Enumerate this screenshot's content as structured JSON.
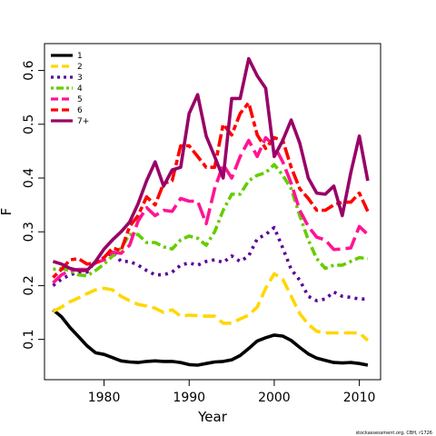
{
  "chart_data": {
    "type": "line",
    "xlabel": "Year",
    "ylabel": "F",
    "xlim": [
      1973,
      2012.5
    ],
    "ylim": [
      0.025,
      0.65
    ],
    "xticks": [
      1980,
      1990,
      2000,
      2010
    ],
    "yticks": [
      0.1,
      0.2,
      0.3,
      0.4,
      0.5,
      0.6
    ],
    "grid": false,
    "legend_position": "top-left",
    "credit": "stockassessment.org, CBH, r1726",
    "x": [
      1974,
      1975,
      1976,
      1977,
      1978,
      1979,
      1980,
      1981,
      1982,
      1983,
      1984,
      1985,
      1986,
      1987,
      1988,
      1989,
      1990,
      1991,
      1992,
      1993,
      1994,
      1995,
      1996,
      1997,
      1998,
      1999,
      2000,
      2001,
      2002,
      2003,
      2004,
      2005,
      2006,
      2007,
      2008,
      2009,
      2010,
      2011
    ],
    "series": [
      {
        "name": "1",
        "color": "#000000",
        "dash": "solid",
        "values": [
          0.155,
          0.142,
          0.122,
          0.105,
          0.088,
          0.075,
          0.072,
          0.066,
          0.06,
          0.058,
          0.057,
          0.059,
          0.06,
          0.059,
          0.059,
          0.057,
          0.053,
          0.052,
          0.055,
          0.058,
          0.059,
          0.062,
          0.07,
          0.083,
          0.097,
          0.103,
          0.108,
          0.106,
          0.098,
          0.085,
          0.073,
          0.065,
          0.061,
          0.057,
          0.056,
          0.057,
          0.055,
          0.052
        ]
      },
      {
        "name": "2",
        "color": "#FFD700",
        "dash": "dashed",
        "values": [
          0.152,
          0.16,
          0.17,
          0.177,
          0.185,
          0.192,
          0.195,
          0.192,
          0.18,
          0.172,
          0.165,
          0.162,
          0.158,
          0.15,
          0.155,
          0.143,
          0.145,
          0.144,
          0.143,
          0.143,
          0.13,
          0.13,
          0.138,
          0.145,
          0.16,
          0.195,
          0.222,
          0.212,
          0.18,
          0.148,
          0.128,
          0.115,
          0.112,
          0.112,
          0.112,
          0.112,
          0.112,
          0.098
        ]
      },
      {
        "name": "3",
        "color": "#5B0096",
        "dash": "dotted",
        "values": [
          0.2,
          0.212,
          0.22,
          0.225,
          0.225,
          0.245,
          0.252,
          0.262,
          0.245,
          0.245,
          0.238,
          0.228,
          0.22,
          0.22,
          0.225,
          0.238,
          0.242,
          0.238,
          0.245,
          0.248,
          0.243,
          0.255,
          0.245,
          0.255,
          0.287,
          0.295,
          0.308,
          0.27,
          0.23,
          0.21,
          0.18,
          0.172,
          0.175,
          0.188,
          0.18,
          0.178,
          0.175,
          0.175
        ]
      },
      {
        "name": "4",
        "color": "#66CC00",
        "dash": "dotdash",
        "values": [
          0.23,
          0.232,
          0.228,
          0.22,
          0.218,
          0.228,
          0.24,
          0.255,
          0.27,
          0.295,
          0.295,
          0.28,
          0.28,
          0.272,
          0.268,
          0.285,
          0.292,
          0.288,
          0.275,
          0.3,
          0.34,
          0.37,
          0.37,
          0.395,
          0.405,
          0.41,
          0.425,
          0.405,
          0.38,
          0.33,
          0.285,
          0.25,
          0.232,
          0.238,
          0.238,
          0.245,
          0.252,
          0.25
        ]
      },
      {
        "name": "5",
        "color": "#FF1493",
        "dash": "longdash",
        "values": [
          0.205,
          0.22,
          0.228,
          0.23,
          0.23,
          0.242,
          0.248,
          0.262,
          0.26,
          0.275,
          0.32,
          0.345,
          0.33,
          0.34,
          0.338,
          0.362,
          0.357,
          0.357,
          0.315,
          0.38,
          0.425,
          0.4,
          0.44,
          0.47,
          0.44,
          0.475,
          0.46,
          0.43,
          0.39,
          0.34,
          0.31,
          0.29,
          0.285,
          0.267,
          0.268,
          0.27,
          0.31,
          0.295
        ]
      },
      {
        "name": "6",
        "color": "#FF0000",
        "dash": "twodash",
        "values": [
          0.215,
          0.23,
          0.248,
          0.25,
          0.24,
          0.242,
          0.252,
          0.27,
          0.265,
          0.31,
          0.33,
          0.365,
          0.35,
          0.39,
          0.395,
          0.46,
          0.46,
          0.44,
          0.42,
          0.42,
          0.5,
          0.48,
          0.52,
          0.54,
          0.48,
          0.455,
          0.475,
          0.47,
          0.42,
          0.38,
          0.362,
          0.34,
          0.34,
          0.35,
          0.355,
          0.355,
          0.372,
          0.338
        ]
      },
      {
        "name": "7+",
        "color": "#990066",
        "dash": "solid",
        "values": [
          0.245,
          0.24,
          0.232,
          0.228,
          0.228,
          0.245,
          0.268,
          0.285,
          0.3,
          0.318,
          0.352,
          0.395,
          0.43,
          0.385,
          0.415,
          0.42,
          0.52,
          0.555,
          0.478,
          0.44,
          0.4,
          0.548,
          0.548,
          0.622,
          0.59,
          0.567,
          0.44,
          0.47,
          0.508,
          0.465,
          0.4,
          0.372,
          0.37,
          0.385,
          0.33,
          0.41,
          0.478,
          0.395
        ]
      }
    ]
  }
}
